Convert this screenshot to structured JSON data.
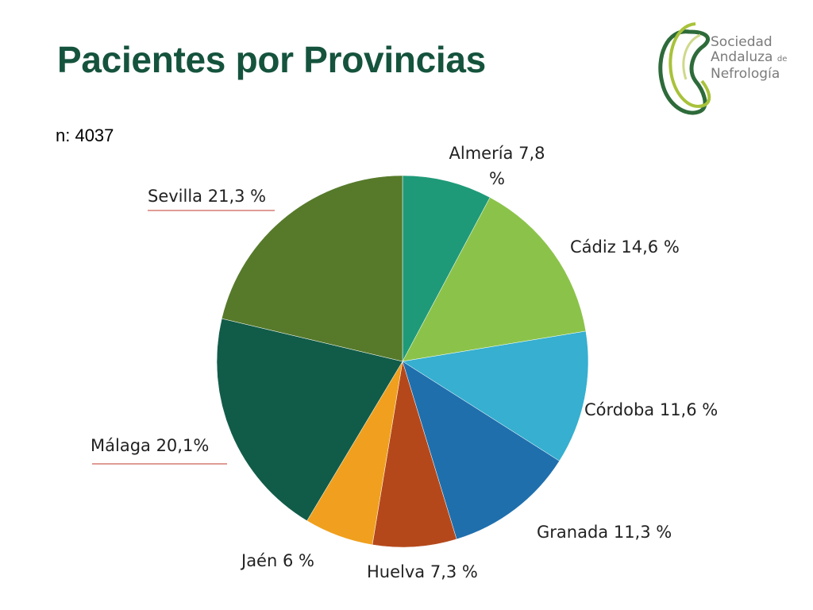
{
  "slide": {
    "title": "Pacientes por Provincias",
    "n_label": "n: 4037"
  },
  "logo": {
    "line1": "Sociedad",
    "line2": "Andaluza",
    "line2_small": "de",
    "line3": "Nefrología",
    "text_color": "#7b7b7b",
    "accent_dark": "#2e6b3a",
    "accent_light": "#a8c23a"
  },
  "chart_data": {
    "type": "pie",
    "title": "",
    "start": "12 o'clock, clockwise",
    "slices": [
      {
        "name": "Almería",
        "value": 7.8,
        "label_lines": [
          "Almería   7,8",
          "%"
        ],
        "color": "#1f9a78"
      },
      {
        "name": "Cádiz",
        "value": 14.6,
        "label_lines": [
          "Cádiz   14,6 %"
        ],
        "color": "#8bc34a"
      },
      {
        "name": "Córdoba",
        "value": 11.6,
        "label_lines": [
          "Córdoba  11,6 %"
        ],
        "color": "#36afd0"
      },
      {
        "name": "Granada",
        "value": 11.3,
        "label_lines": [
          "Granada  11,3 %"
        ],
        "color": "#1f6fad"
      },
      {
        "name": "Huelva",
        "value": 7.3,
        "label_lines": [
          "Huelva  7,3 %"
        ],
        "color": "#b5481a"
      },
      {
        "name": "Jaén",
        "value": 6.0,
        "label_lines": [
          "Jaén   6 %"
        ],
        "color": "#f0a01e"
      },
      {
        "name": "Málaga",
        "value": 20.1,
        "label_lines": [
          "Málaga 20,1%"
        ],
        "color": "#115c49"
      },
      {
        "name": "Sevilla",
        "value": 21.3,
        "label_lines": [
          "Sevilla  21,3 %"
        ],
        "color": "#567a2a"
      }
    ]
  }
}
